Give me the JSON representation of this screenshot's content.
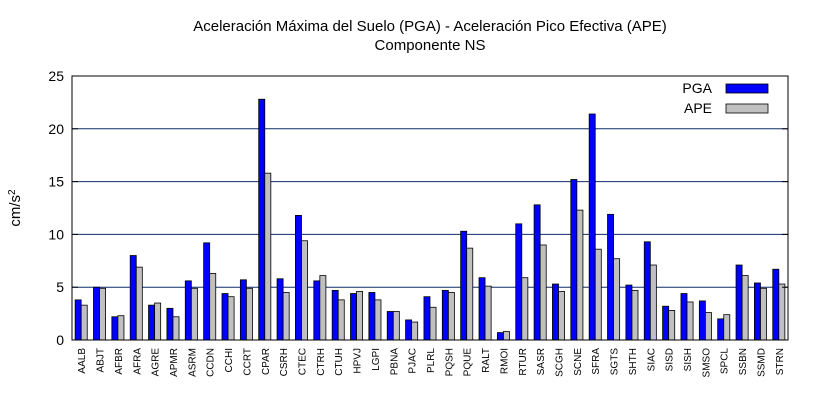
{
  "chart_data": {
    "type": "bar",
    "title": "Aceleración Máxima del Suelo (PGA) -  Aceleración Pico Efectiva (APE)",
    "subtitle": "Componente NS",
    "ylabel": "cm/s",
    "ylabel_sup": "2",
    "xlabel": "",
    "ylim": [
      0,
      25
    ],
    "yticks": [
      0,
      5,
      10,
      15,
      20,
      25
    ],
    "grid": true,
    "legend_position": "top-right",
    "categories": [
      "AALB",
      "ABJT",
      "AFBR",
      "AFRA",
      "AGRE",
      "APMR",
      "ASRM",
      "CCDN",
      "CCHI",
      "CCRT",
      "CPAR",
      "CSRH",
      "CTEC",
      "CTRH",
      "CTUH",
      "HPVJ",
      "LGPI",
      "PBNA",
      "PJAC",
      "PLRL",
      "PQSH",
      "PQUE",
      "RALT",
      "RMOI",
      "RTUR",
      "SASR",
      "SCGH",
      "SCNE",
      "SFRA",
      "SGTS",
      "SHTH",
      "SIAC",
      "SISD",
      "SISH",
      "SMSO",
      "SPCL",
      "SSBN",
      "SSMD",
      "STRN"
    ],
    "series": [
      {
        "name": "PGA",
        "color": "#0000ff",
        "values": [
          3.8,
          5.0,
          2.2,
          8.0,
          3.3,
          3.0,
          5.6,
          9.2,
          4.4,
          5.7,
          22.8,
          5.8,
          11.8,
          5.6,
          4.7,
          4.4,
          4.5,
          2.7,
          1.9,
          4.1,
          4.7,
          10.3,
          5.9,
          0.7,
          11.0,
          12.8,
          5.3,
          15.2,
          21.4,
          11.9,
          5.2,
          9.3,
          3.2,
          4.4,
          3.7,
          2.0,
          7.1,
          5.4,
          6.7
        ]
      },
      {
        "name": "APE",
        "color": "#c0c0c0",
        "values": [
          3.3,
          4.9,
          2.3,
          6.9,
          3.5,
          2.2,
          4.9,
          6.3,
          4.1,
          4.9,
          15.8,
          4.5,
          9.4,
          6.1,
          3.8,
          4.6,
          3.8,
          2.7,
          1.7,
          3.1,
          4.5,
          8.7,
          5.1,
          0.8,
          5.9,
          9.0,
          4.6,
          12.3,
          8.6,
          7.7,
          4.7,
          7.1,
          2.8,
          3.6,
          2.6,
          2.4,
          6.1,
          4.9,
          5.3
        ]
      }
    ]
  }
}
